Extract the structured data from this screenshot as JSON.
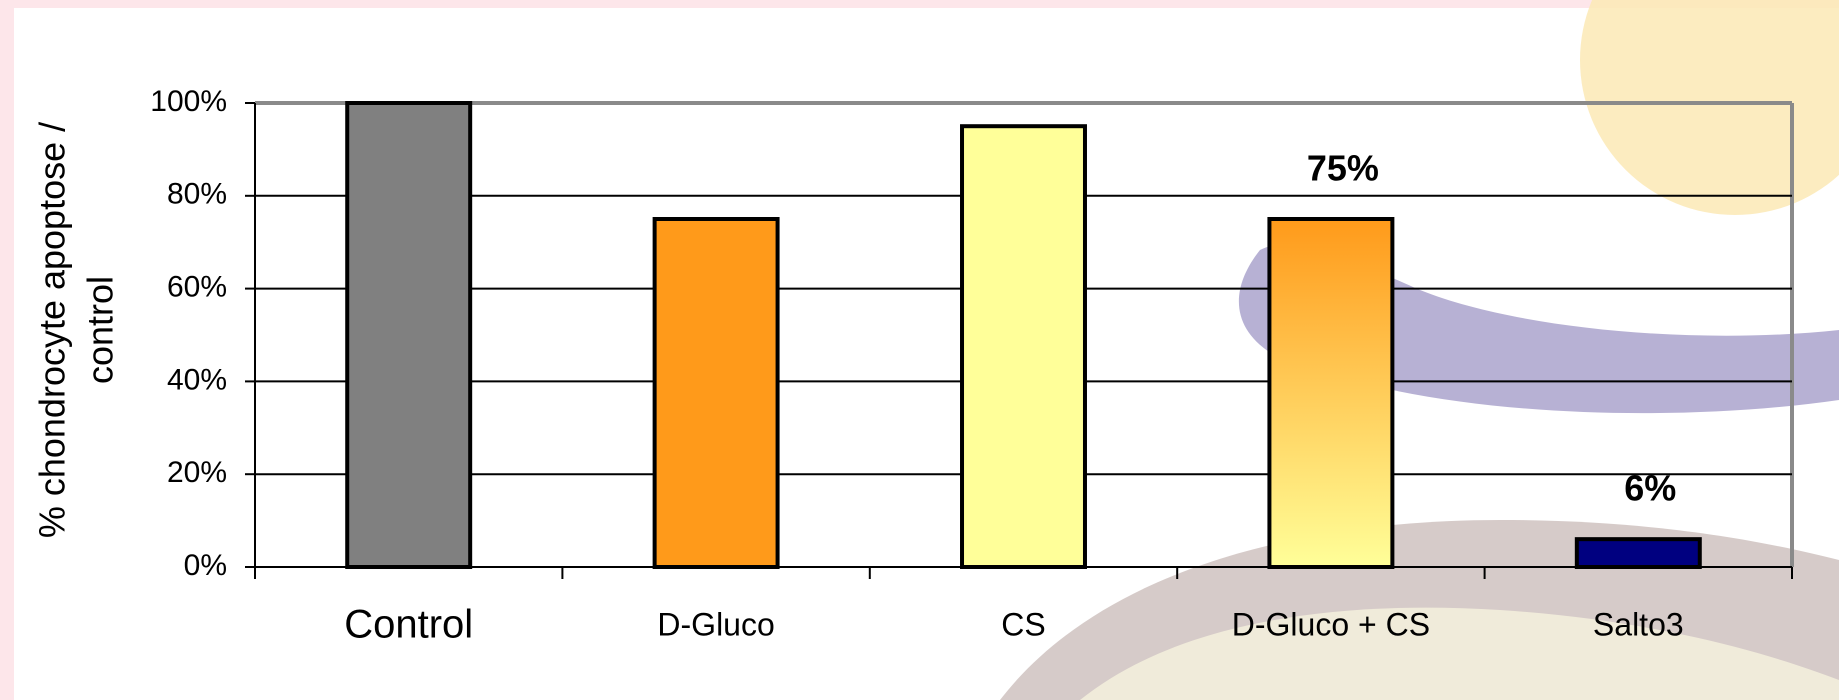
{
  "chart_data": {
    "type": "bar",
    "ylabel": [
      "% chondrocyte apoptose /",
      "control"
    ],
    "categories": [
      "Control",
      "D-Gluco",
      "CS",
      "D-Gluco + CS",
      "Salto3"
    ],
    "values": [
      100,
      75,
      95,
      75,
      6
    ],
    "value_labels": [
      null,
      null,
      null,
      "75%",
      "6%"
    ],
    "colors": [
      "#808080",
      "#ff9a1a",
      "#ffff99",
      [
        "#ff9a1a",
        "#ffff99"
      ],
      "#000080"
    ],
    "ylim": [
      0,
      100
    ],
    "yticks": [
      {
        "value": 0,
        "label": "0%"
      },
      {
        "value": 20,
        "label": "20%"
      },
      {
        "value": 40,
        "label": "40%"
      },
      {
        "value": 60,
        "label": "60%"
      },
      {
        "value": 80,
        "label": "80%"
      },
      {
        "value": 100,
        "label": "100%"
      }
    ],
    "grid": true
  }
}
